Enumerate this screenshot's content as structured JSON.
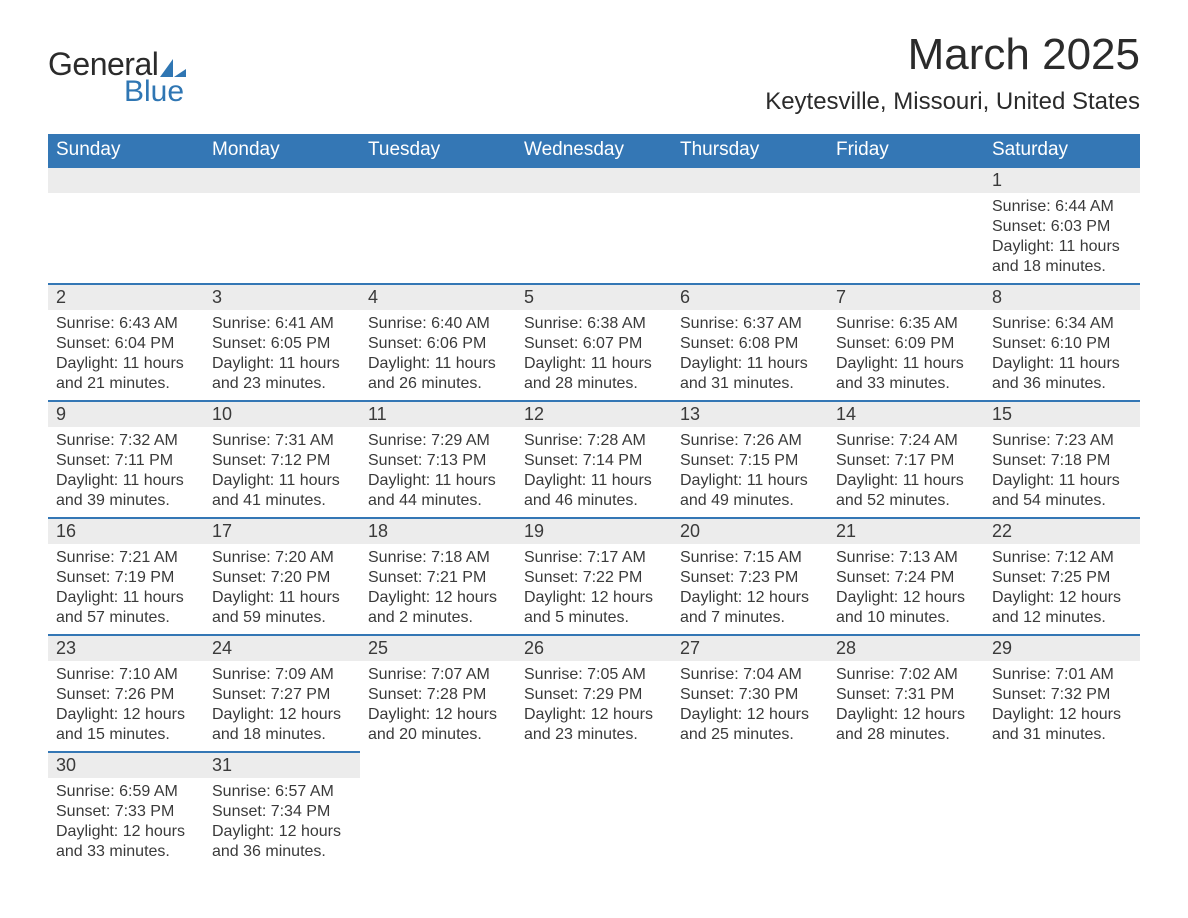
{
  "logo": {
    "word1": "General",
    "word2": "Blue",
    "accent_color": "#2f76b3"
  },
  "header": {
    "title": "March 2025",
    "location": "Keytesville, Missouri, United States"
  },
  "calendar": {
    "header_bg": "#3477b5",
    "header_text_color": "#ffffff",
    "daynum_bg": "#ececec",
    "row_border_color": "#3477b5",
    "text_color": "#3a3a3a",
    "columns": [
      "Sunday",
      "Monday",
      "Tuesday",
      "Wednesday",
      "Thursday",
      "Friday",
      "Saturday"
    ],
    "weeks": [
      [
        {
          "day": "",
          "lines": []
        },
        {
          "day": "",
          "lines": []
        },
        {
          "day": "",
          "lines": []
        },
        {
          "day": "",
          "lines": []
        },
        {
          "day": "",
          "lines": []
        },
        {
          "day": "",
          "lines": []
        },
        {
          "day": "1",
          "lines": [
            "Sunrise: 6:44 AM",
            "Sunset: 6:03 PM",
            "Daylight: 11 hours and 18 minutes."
          ]
        }
      ],
      [
        {
          "day": "2",
          "lines": [
            "Sunrise: 6:43 AM",
            "Sunset: 6:04 PM",
            "Daylight: 11 hours and 21 minutes."
          ]
        },
        {
          "day": "3",
          "lines": [
            "Sunrise: 6:41 AM",
            "Sunset: 6:05 PM",
            "Daylight: 11 hours and 23 minutes."
          ]
        },
        {
          "day": "4",
          "lines": [
            "Sunrise: 6:40 AM",
            "Sunset: 6:06 PM",
            "Daylight: 11 hours and 26 minutes."
          ]
        },
        {
          "day": "5",
          "lines": [
            "Sunrise: 6:38 AM",
            "Sunset: 6:07 PM",
            "Daylight: 11 hours and 28 minutes."
          ]
        },
        {
          "day": "6",
          "lines": [
            "Sunrise: 6:37 AM",
            "Sunset: 6:08 PM",
            "Daylight: 11 hours and 31 minutes."
          ]
        },
        {
          "day": "7",
          "lines": [
            "Sunrise: 6:35 AM",
            "Sunset: 6:09 PM",
            "Daylight: 11 hours and 33 minutes."
          ]
        },
        {
          "day": "8",
          "lines": [
            "Sunrise: 6:34 AM",
            "Sunset: 6:10 PM",
            "Daylight: 11 hours and 36 minutes."
          ]
        }
      ],
      [
        {
          "day": "9",
          "lines": [
            "Sunrise: 7:32 AM",
            "Sunset: 7:11 PM",
            "Daylight: 11 hours and 39 minutes."
          ]
        },
        {
          "day": "10",
          "lines": [
            "Sunrise: 7:31 AM",
            "Sunset: 7:12 PM",
            "Daylight: 11 hours and 41 minutes."
          ]
        },
        {
          "day": "11",
          "lines": [
            "Sunrise: 7:29 AM",
            "Sunset: 7:13 PM",
            "Daylight: 11 hours and 44 minutes."
          ]
        },
        {
          "day": "12",
          "lines": [
            "Sunrise: 7:28 AM",
            "Sunset: 7:14 PM",
            "Daylight: 11 hours and 46 minutes."
          ]
        },
        {
          "day": "13",
          "lines": [
            "Sunrise: 7:26 AM",
            "Sunset: 7:15 PM",
            "Daylight: 11 hours and 49 minutes."
          ]
        },
        {
          "day": "14",
          "lines": [
            "Sunrise: 7:24 AM",
            "Sunset: 7:17 PM",
            "Daylight: 11 hours and 52 minutes."
          ]
        },
        {
          "day": "15",
          "lines": [
            "Sunrise: 7:23 AM",
            "Sunset: 7:18 PM",
            "Daylight: 11 hours and 54 minutes."
          ]
        }
      ],
      [
        {
          "day": "16",
          "lines": [
            "Sunrise: 7:21 AM",
            "Sunset: 7:19 PM",
            "Daylight: 11 hours and 57 minutes."
          ]
        },
        {
          "day": "17",
          "lines": [
            "Sunrise: 7:20 AM",
            "Sunset: 7:20 PM",
            "Daylight: 11 hours and 59 minutes."
          ]
        },
        {
          "day": "18",
          "lines": [
            "Sunrise: 7:18 AM",
            "Sunset: 7:21 PM",
            "Daylight: 12 hours and 2 minutes."
          ]
        },
        {
          "day": "19",
          "lines": [
            "Sunrise: 7:17 AM",
            "Sunset: 7:22 PM",
            "Daylight: 12 hours and 5 minutes."
          ]
        },
        {
          "day": "20",
          "lines": [
            "Sunrise: 7:15 AM",
            "Sunset: 7:23 PM",
            "Daylight: 12 hours and 7 minutes."
          ]
        },
        {
          "day": "21",
          "lines": [
            "Sunrise: 7:13 AM",
            "Sunset: 7:24 PM",
            "Daylight: 12 hours and 10 minutes."
          ]
        },
        {
          "day": "22",
          "lines": [
            "Sunrise: 7:12 AM",
            "Sunset: 7:25 PM",
            "Daylight: 12 hours and 12 minutes."
          ]
        }
      ],
      [
        {
          "day": "23",
          "lines": [
            "Sunrise: 7:10 AM",
            "Sunset: 7:26 PM",
            "Daylight: 12 hours and 15 minutes."
          ]
        },
        {
          "day": "24",
          "lines": [
            "Sunrise: 7:09 AM",
            "Sunset: 7:27 PM",
            "Daylight: 12 hours and 18 minutes."
          ]
        },
        {
          "day": "25",
          "lines": [
            "Sunrise: 7:07 AM",
            "Sunset: 7:28 PM",
            "Daylight: 12 hours and 20 minutes."
          ]
        },
        {
          "day": "26",
          "lines": [
            "Sunrise: 7:05 AM",
            "Sunset: 7:29 PM",
            "Daylight: 12 hours and 23 minutes."
          ]
        },
        {
          "day": "27",
          "lines": [
            "Sunrise: 7:04 AM",
            "Sunset: 7:30 PM",
            "Daylight: 12 hours and 25 minutes."
          ]
        },
        {
          "day": "28",
          "lines": [
            "Sunrise: 7:02 AM",
            "Sunset: 7:31 PM",
            "Daylight: 12 hours and 28 minutes."
          ]
        },
        {
          "day": "29",
          "lines": [
            "Sunrise: 7:01 AM",
            "Sunset: 7:32 PM",
            "Daylight: 12 hours and 31 minutes."
          ]
        }
      ],
      [
        {
          "day": "30",
          "lines": [
            "Sunrise: 6:59 AM",
            "Sunset: 7:33 PM",
            "Daylight: 12 hours and 33 minutes."
          ]
        },
        {
          "day": "31",
          "lines": [
            "Sunrise: 6:57 AM",
            "Sunset: 7:34 PM",
            "Daylight: 12 hours and 36 minutes."
          ]
        },
        {
          "day": "",
          "lines": []
        },
        {
          "day": "",
          "lines": []
        },
        {
          "day": "",
          "lines": []
        },
        {
          "day": "",
          "lines": []
        },
        {
          "day": "",
          "lines": []
        }
      ]
    ]
  }
}
